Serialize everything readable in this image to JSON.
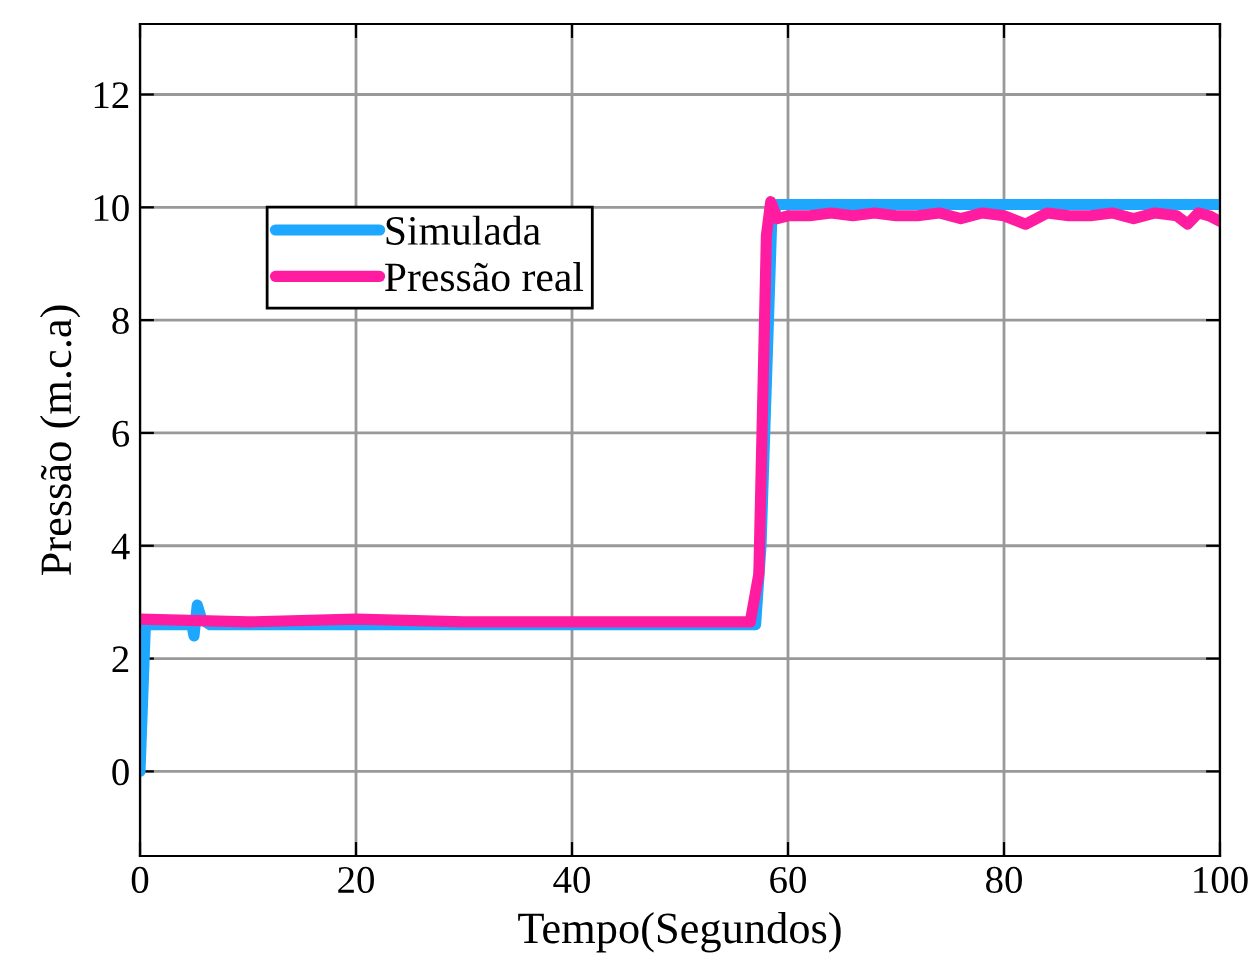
{
  "chart_data": {
    "type": "line",
    "xlabel": "Tempo(Segundos)",
    "ylabel": "Pressão (m.c.a)",
    "xlim": [
      0,
      100
    ],
    "xticks": [
      0,
      20,
      40,
      60,
      80,
      100
    ],
    "ylim": [
      -1.5,
      13.25
    ],
    "yticks": [
      0,
      2,
      4,
      6,
      8,
      10,
      12
    ],
    "grid": true,
    "legend": "top left",
    "line_style": "solid",
    "marker": "none",
    "series": [
      {
        "name": "Simulada",
        "color": "#1ea7ff",
        "x": [
          0,
          0.5,
          4.8,
          5.0,
          5.3,
          5.7,
          6.5,
          57,
          57.5,
          58.5,
          59,
          70,
          80,
          90,
          100
        ],
        "values": [
          0,
          2.6,
          2.6,
          2.4,
          2.95,
          2.7,
          2.6,
          2.6,
          4,
          9.8,
          10.05,
          10.05,
          10.05,
          10.05,
          10.05
        ]
      },
      {
        "name": "Pressão real",
        "color": "#ff1ca0",
        "x": [
          0,
          10,
          20,
          30,
          40,
          50,
          56.5,
          57.3,
          58,
          58.4,
          59,
          60,
          62,
          64,
          66,
          68,
          70,
          72,
          74,
          76,
          78,
          80,
          82,
          84,
          86,
          88,
          90,
          92,
          94,
          96,
          97,
          98,
          99,
          100
        ],
        "values": [
          2.7,
          2.65,
          2.7,
          2.65,
          2.65,
          2.65,
          2.65,
          3.5,
          9.5,
          10.1,
          9.8,
          9.85,
          9.85,
          9.9,
          9.85,
          9.9,
          9.85,
          9.85,
          9.9,
          9.8,
          9.9,
          9.85,
          9.7,
          9.9,
          9.85,
          9.85,
          9.9,
          9.8,
          9.9,
          9.85,
          9.7,
          9.9,
          9.85,
          9.75
        ]
      }
    ]
  }
}
